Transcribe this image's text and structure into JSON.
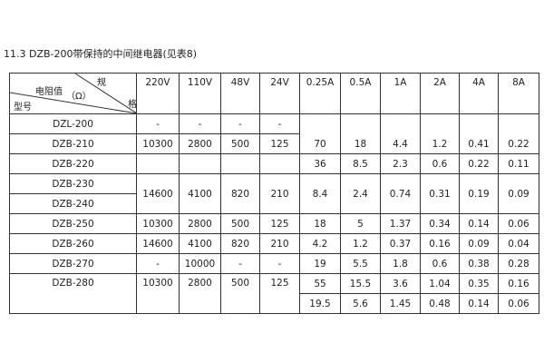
{
  "title": "11.3 DZB-200带保持的中间继电器(见表8)",
  "header": {
    "corner": {
      "spec": "规",
      "resistance": "电阻值",
      "unit": "（Ω）",
      "grid": "格",
      "model": "型号"
    },
    "columns": [
      "220V",
      "110V",
      "48V",
      "24V",
      "0.25A",
      "0.5A",
      "1A",
      "2A",
      "4A",
      "8A"
    ]
  },
  "rows": {
    "dzl200": {
      "model": "DZL-200",
      "v": [
        "-",
        "-",
        "-",
        "-"
      ]
    },
    "dzb210": {
      "model": "DZB-210",
      "v": [
        "10300",
        "2800",
        "500",
        "125"
      ],
      "a": [
        "70",
        "18",
        "4.4",
        "1.2",
        "0.41",
        "0.22"
      ]
    },
    "dzb220": {
      "model": "DZB-220",
      "a": [
        "36",
        "8.5",
        "2.3",
        "0.6",
        "0.22",
        "0.11"
      ]
    },
    "dzb230": {
      "model": "DZB-230",
      "v": [
        "14600",
        "4100",
        "820",
        "210"
      ],
      "a": [
        "8.4",
        "2.4",
        "0.74",
        "0.31",
        "0.19",
        "0.09"
      ]
    },
    "dzb240": {
      "model": "DZB-240"
    },
    "dzb250": {
      "model": "DZB-250",
      "v": [
        "10300",
        "2800",
        "500",
        "125"
      ],
      "a": [
        "18",
        "5",
        "1.37",
        "0.34",
        "0.14",
        "0.06"
      ]
    },
    "dzb260": {
      "model": "DZB-260",
      "v": [
        "14600",
        "4100",
        "820",
        "210"
      ],
      "a": [
        "4.2",
        "1.2",
        "0.37",
        "0.16",
        "0.09",
        "0.04"
      ]
    },
    "dzb270": {
      "model": "DZB-270",
      "v": [
        "-",
        "10000",
        "-",
        "-"
      ],
      "a": [
        "19",
        "5.5",
        "1.8",
        "0.6",
        "0.38",
        "0.28"
      ]
    },
    "dzb280": {
      "model": "DZB-280",
      "v": [
        "10300",
        "2800",
        "500",
        "125"
      ],
      "a": [
        "55",
        "15.5",
        "3.6",
        "1.04",
        "0.35",
        "0.16"
      ],
      "a2": [
        "19.5",
        "5.6",
        "1.45",
        "0.48",
        "0.14",
        "0.06"
      ]
    }
  }
}
